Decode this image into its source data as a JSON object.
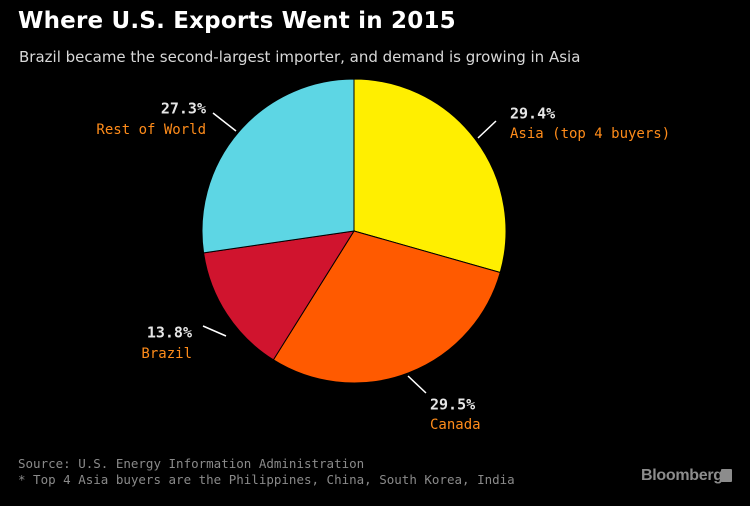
{
  "header": {
    "title": "Where U.S. Exports Went in 2015",
    "subtitle": "Brazil became the second-largest importer, and demand is growing in Asia"
  },
  "chart_data": {
    "type": "pie",
    "title": "Where U.S. Exports Went in 2015",
    "subtitle": "Brazil became the second-largest importer, and demand is growing in Asia",
    "start": "12 o'clock",
    "direction": "clockwise",
    "slices": [
      {
        "label": "Asia (top 4 buyers)",
        "value": 29.4,
        "value_label": "29.4%",
        "color": "#FFEF00"
      },
      {
        "label": "Canada",
        "value": 29.5,
        "value_label": "29.5%",
        "color": "#FF5A00"
      },
      {
        "label": "Brazil",
        "value": 13.8,
        "value_label": "13.8%",
        "color": "#D0142E"
      },
      {
        "label": "Rest of World",
        "value": 27.3,
        "value_label": "27.3%",
        "color": "#5DD6E4"
      }
    ],
    "value_label_color": "#E6E6E6",
    "category_label_color": "#FF8C1A"
  },
  "footer": {
    "source": "Source: U.S. Energy Information Administration",
    "note": "* Top 4 Asia buyers are the Philippines, China, South Korea, India",
    "brand": "Bloomberg"
  }
}
